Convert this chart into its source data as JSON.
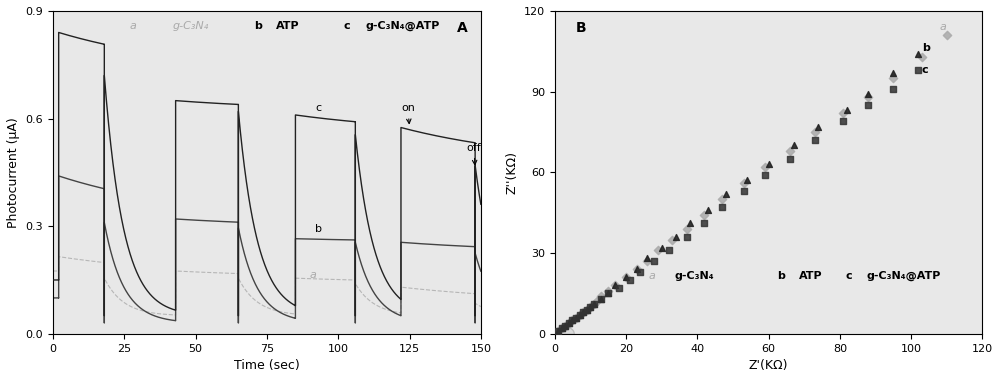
{
  "panel_A": {
    "title": "A",
    "xlabel": "Time (sec)",
    "ylabel": "Photocurrent (μA)",
    "xlim": [
      0,
      150
    ],
    "ylim": [
      0.0,
      0.9
    ],
    "yticks": [
      0.0,
      0.3,
      0.6,
      0.9
    ],
    "xticks": [
      0,
      25,
      50,
      75,
      100,
      125,
      150
    ],
    "legend_a": "g-C₃N₄",
    "legend_b": "ATP",
    "legend_c": "g-C₃N₄@ATP",
    "annotation_on": "on",
    "annotation_off": "off",
    "on_x": 125,
    "off_x": 145,
    "on_y": 0.595,
    "off_y": 0.49
  },
  "panel_B": {
    "title": "B",
    "xlabel": "Z'(KΩ)",
    "ylabel": "Z''(KΩ)",
    "xlim": [
      0,
      120
    ],
    "ylim": [
      0,
      120
    ],
    "yticks": [
      0,
      30,
      60,
      90,
      120
    ],
    "xticks": [
      0,
      20,
      40,
      60,
      80,
      100,
      120
    ],
    "legend_a": "g-C₃N₄",
    "legend_b": "ATP",
    "legend_c": "g-C₃N₄@ATP"
  },
  "colors": {
    "a": "#aaaaaa",
    "b": "#222222",
    "c": "#444444"
  }
}
